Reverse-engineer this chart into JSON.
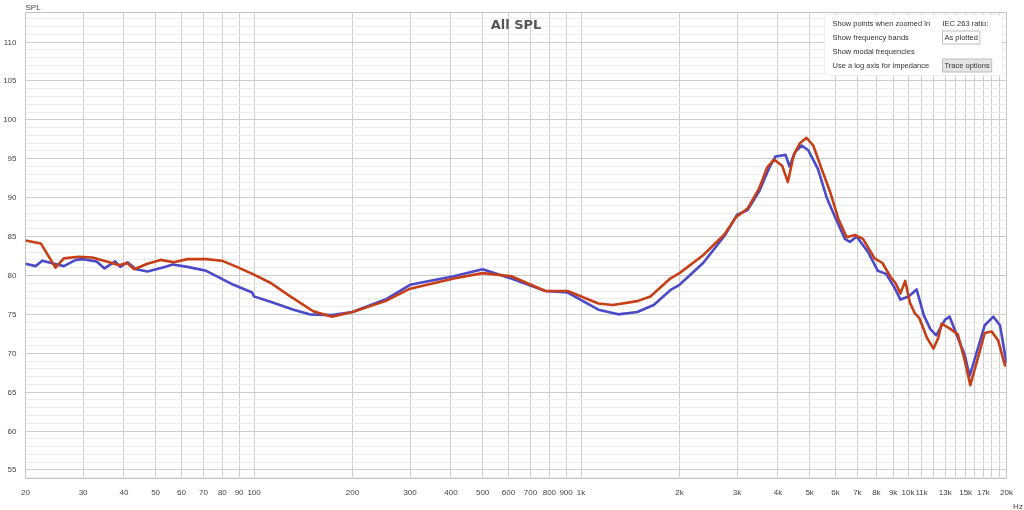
{
  "chart_data": {
    "type": "line",
    "title": "All SPL",
    "ylabel": "SPL",
    "xlabel": "Hz",
    "log": "x",
    "grid": true,
    "xlim": [
      20,
      20000
    ],
    "ylim": [
      53.9,
      113.8
    ],
    "xticks": [
      20,
      30,
      40,
      50,
      60,
      70,
      80,
      90,
      100,
      200,
      300,
      400,
      500,
      600,
      700,
      800,
      900,
      {
        "value": 1000,
        "label": "1k"
      },
      {
        "value": 2000,
        "label": "2k"
      },
      {
        "value": 3000,
        "label": "3k"
      },
      {
        "value": 4000,
        "label": "4k"
      },
      {
        "value": 5000,
        "label": "5k"
      },
      {
        "value": 6000,
        "label": "6k"
      },
      {
        "value": 7000,
        "label": "7k"
      },
      {
        "value": 8000,
        "label": "8k"
      },
      {
        "value": 9000,
        "label": "9k"
      },
      {
        "value": 10000,
        "label": "10k"
      },
      {
        "value": 11000,
        "label": "11k"
      },
      {
        "value": 12000,
        "label": null
      },
      {
        "value": 13000,
        "label": "13k"
      },
      {
        "value": 14000,
        "label": null
      },
      {
        "value": 15000,
        "label": "15k"
      },
      {
        "value": 16000,
        "label": null
      },
      {
        "value": 17000,
        "label": "17k"
      },
      {
        "value": 18000,
        "label": null
      },
      {
        "value": 19000,
        "label": null
      },
      {
        "value": 20000,
        "label": "20k"
      }
    ],
    "yticks": [
      55,
      60,
      65,
      70,
      75,
      80,
      85,
      90,
      95,
      100,
      105,
      110
    ],
    "series": [
      {
        "color": "#4b4bc9",
        "x": [
          20,
          21.5,
          22.5,
          25,
          26.2,
          28.5,
          30,
          33,
          34.9,
          37.6,
          39,
          41,
          43.6,
          47.2,
          53.3,
          56.3,
          62.6,
          71.4,
          86.5,
          98.7,
          100,
          112.8,
          132,
          147.7,
          173,
          200,
          252,
          300,
          408,
          500,
          612,
          778,
          910,
          1130,
          1300,
          1486,
          1668,
          1874,
          2000,
          2362,
          2747,
          3000,
          3229,
          3505,
          3750,
          3930,
          4220,
          4340,
          4520,
          4730,
          4950,
          5300,
          5640,
          5980,
          6410,
          6640,
          6960,
          7550,
          8080,
          8560,
          9070,
          9480,
          10040,
          10620,
          11170,
          11700,
          12200,
          12960,
          13400,
          14200,
          14900,
          15430,
          16180,
          17160,
          18240,
          19100,
          20000
        ],
        "values": [
          81.5,
          81.2,
          81.9,
          81.4,
          81.2,
          82.0,
          82.1,
          81.8,
          80.9,
          81.8,
          81.1,
          81.7,
          80.8,
          80.5,
          81.1,
          81.4,
          81.1,
          80.6,
          78.8,
          77.8,
          77.3,
          76.6,
          75.6,
          75.0,
          74.9,
          75.3,
          76.9,
          78.8,
          79.9,
          80.8,
          79.6,
          78.0,
          77.8,
          75.6,
          75.0,
          75.3,
          76.2,
          78.1,
          78.8,
          81.6,
          85.1,
          87.8,
          88.4,
          90.8,
          93.7,
          95.3,
          95.5,
          94.0,
          95.9,
          96.7,
          96.1,
          93.7,
          90.0,
          87.5,
          84.7,
          84.3,
          85.0,
          83.0,
          80.6,
          80.2,
          78.5,
          76.9,
          77.3,
          78.2,
          74.9,
          73.1,
          72.3,
          74.3,
          74.7,
          72.0,
          69.8,
          67.1,
          70.0,
          73.6,
          74.7,
          73.6,
          68.7
        ]
      },
      {
        "color": "#c63f17",
        "x": [
          20,
          22.3,
          24.7,
          26.2,
          29.1,
          32,
          36.1,
          38.6,
          40.9,
          43,
          47.2,
          51.8,
          56.8,
          62.6,
          71.4,
          79.7,
          88.6,
          100,
          112.8,
          127,
          151.7,
          173,
          200,
          252,
          300,
          408,
          500,
          612,
          778,
          910,
          1130,
          1250,
          1486,
          1630,
          1874,
          2000,
          2362,
          2747,
          2978,
          3229,
          3505,
          3710,
          3890,
          4120,
          4290,
          4470,
          4670,
          4890,
          5130,
          5440,
          5770,
          6120,
          6490,
          6880,
          7280,
          7900,
          8350,
          8840,
          9160,
          9480,
          9800,
          10130,
          10470,
          10830,
          11420,
          11960,
          12380,
          12660,
          13400,
          14200,
          14900,
          15500,
          16180,
          17160,
          18020,
          18880,
          19820
        ],
        "values": [
          84.5,
          84.1,
          81.0,
          82.2,
          82.4,
          82.3,
          81.7,
          81.3,
          81.6,
          80.8,
          81.5,
          82.0,
          81.7,
          82.1,
          82.1,
          81.9,
          81.1,
          80.1,
          79.0,
          77.5,
          75.4,
          74.7,
          75.3,
          76.7,
          78.3,
          79.6,
          80.3,
          79.9,
          78.0,
          78.0,
          76.4,
          76.2,
          76.7,
          77.3,
          79.6,
          80.3,
          82.6,
          85.3,
          87.5,
          88.6,
          91.2,
          93.9,
          94.9,
          94.1,
          92.0,
          95.5,
          97.0,
          97.7,
          96.7,
          93.7,
          90.8,
          87.3,
          84.9,
          85.2,
          84.7,
          82.2,
          81.6,
          79.8,
          79.0,
          77.7,
          79.3,
          76.5,
          75.2,
          74.5,
          72.0,
          70.6,
          72.0,
          73.8,
          73.2,
          72.4,
          69.1,
          65.9,
          68.7,
          72.6,
          72.8,
          71.6,
          68.3
        ]
      }
    ],
    "annotations": [
      "Show points when zoomed in",
      "Show frequency bands",
      "Show modal frequencies",
      "Use a log axis for impedance",
      "IEC 263 ratio:",
      "As plotted",
      "Trace options"
    ]
  }
}
